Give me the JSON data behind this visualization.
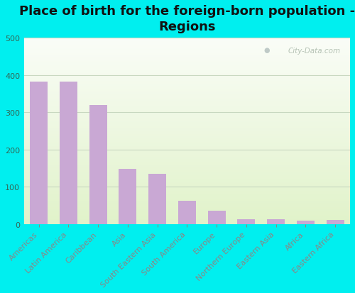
{
  "title": "Place of birth for the foreign-born population -\nRegions",
  "categories": [
    "Americas",
    "Latin America",
    "Caribbean",
    "Asia",
    "South Eastern Asia",
    "South America",
    "Europe",
    "Northern Europe",
    "Eastern Asia",
    "Africa",
    "Eastern Africa"
  ],
  "values": [
    382,
    382,
    320,
    148,
    135,
    62,
    35,
    13,
    13,
    9,
    10
  ],
  "bar_color": "#c9a8d4",
  "background_outer": "#00efef",
  "ylim": [
    0,
    500
  ],
  "yticks": [
    0,
    100,
    200,
    300,
    400,
    500
  ],
  "title_fontsize": 13,
  "tick_fontsize": 8,
  "watermark": "City-Data.com"
}
